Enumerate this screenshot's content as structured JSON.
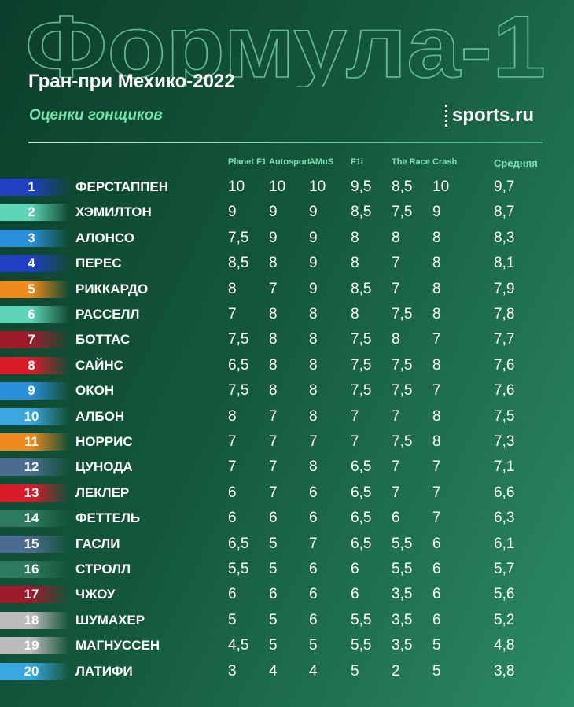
{
  "header": {
    "title": "Формула-1",
    "subtitle": "Гран-при Мехико-2022",
    "section": "Оценки гонщиков",
    "brand": "sports.ru"
  },
  "table": {
    "columns": [
      "Planet F1",
      "Autosport",
      "AMuS",
      "F1i",
      "The Race",
      "Crash",
      "Средняя"
    ],
    "rows": [
      {
        "rank": 1,
        "name": "ФЕРСТАППЕН",
        "color": "#1f3fc4",
        "scores": [
          "10",
          "10",
          "10",
          "9,5",
          "8,5",
          "10",
          "9,7"
        ]
      },
      {
        "rank": 2,
        "name": "ХЭМИЛТОН",
        "color": "#5fd4b6",
        "scores": [
          "9",
          "9",
          "9",
          "8,5",
          "7,5",
          "9",
          "8,7"
        ]
      },
      {
        "rank": 3,
        "name": "АЛОНСО",
        "color": "#2a8fd8",
        "scores": [
          "7,5",
          "9",
          "9",
          "8",
          "8",
          "8",
          "8,3"
        ]
      },
      {
        "rank": 4,
        "name": "ПЕРЕС",
        "color": "#1f3fc4",
        "scores": [
          "8,5",
          "8",
          "9",
          "8",
          "7",
          "8",
          "8,1"
        ]
      },
      {
        "rank": 5,
        "name": "РИККАРДО",
        "color": "#f08a1c",
        "scores": [
          "8",
          "7",
          "9",
          "8,5",
          "7",
          "8",
          "7,9"
        ]
      },
      {
        "rank": 6,
        "name": "РАССЕЛЛ",
        "color": "#5fd4b6",
        "scores": [
          "7",
          "8",
          "8",
          "8",
          "7,5",
          "8",
          "7,8"
        ]
      },
      {
        "rank": 7,
        "name": "БОТТАС",
        "color": "#9c1c2c",
        "scores": [
          "7,5",
          "8",
          "8",
          "7,5",
          "8",
          "7",
          "7,7"
        ]
      },
      {
        "rank": 8,
        "name": "САЙНС",
        "color": "#d91c2a",
        "scores": [
          "6,5",
          "8",
          "8",
          "7,5",
          "7,5",
          "8",
          "7,6"
        ]
      },
      {
        "rank": 9,
        "name": "ОКОН",
        "color": "#2a8fd8",
        "scores": [
          "7,5",
          "8",
          "8",
          "7,5",
          "7,5",
          "7",
          "7,6"
        ]
      },
      {
        "rank": 10,
        "name": "АЛБОН",
        "color": "#3aa8e0",
        "scores": [
          "8",
          "7",
          "8",
          "7",
          "7",
          "8",
          "7,5"
        ]
      },
      {
        "rank": 11,
        "name": "НОРРИС",
        "color": "#f08a1c",
        "scores": [
          "7",
          "7",
          "7",
          "7",
          "7,5",
          "8",
          "7,3"
        ]
      },
      {
        "rank": 12,
        "name": "ЦУНОДА",
        "color": "#4a6d8f",
        "scores": [
          "7",
          "7",
          "8",
          "6,5",
          "7",
          "7",
          "7,1"
        ]
      },
      {
        "rank": 13,
        "name": "ЛЕКЛЕР",
        "color": "#d91c2a",
        "scores": [
          "6",
          "7",
          "6",
          "6,5",
          "7",
          "7",
          "6,6"
        ]
      },
      {
        "rank": 14,
        "name": "ФЕТТЕЛЬ",
        "color": "#2e7a5e",
        "scores": [
          "6",
          "6",
          "6",
          "6,5",
          "6",
          "7",
          "6,3"
        ]
      },
      {
        "rank": 15,
        "name": "ГАСЛИ",
        "color": "#4a6d8f",
        "scores": [
          "6,5",
          "5",
          "7",
          "6,5",
          "5,5",
          "6",
          "6,1"
        ]
      },
      {
        "rank": 16,
        "name": "СТРОЛЛ",
        "color": "#2e7a5e",
        "scores": [
          "5,5",
          "5",
          "6",
          "6",
          "5,5",
          "6",
          "5,7"
        ]
      },
      {
        "rank": 17,
        "name": "ЧЖОУ",
        "color": "#9c1c2c",
        "scores": [
          "6",
          "6",
          "6",
          "6",
          "3,5",
          "6",
          "5,6"
        ]
      },
      {
        "rank": 18,
        "name": "ШУМАХЕР",
        "color": "#bbbbbb",
        "scores": [
          "5",
          "5",
          "6",
          "5,5",
          "3,5",
          "6",
          "5,2"
        ]
      },
      {
        "rank": 19,
        "name": "МАГНУССЕН",
        "color": "#bbbbbb",
        "scores": [
          "4,5",
          "5",
          "5",
          "5,5",
          "3,5",
          "5",
          "4,8"
        ]
      },
      {
        "rank": 20,
        "name": "ЛАТИФИ",
        "color": "#3aa8e0",
        "scores": [
          "3",
          "4",
          "4",
          "5",
          "2",
          "5",
          "3,8"
        ]
      }
    ]
  }
}
